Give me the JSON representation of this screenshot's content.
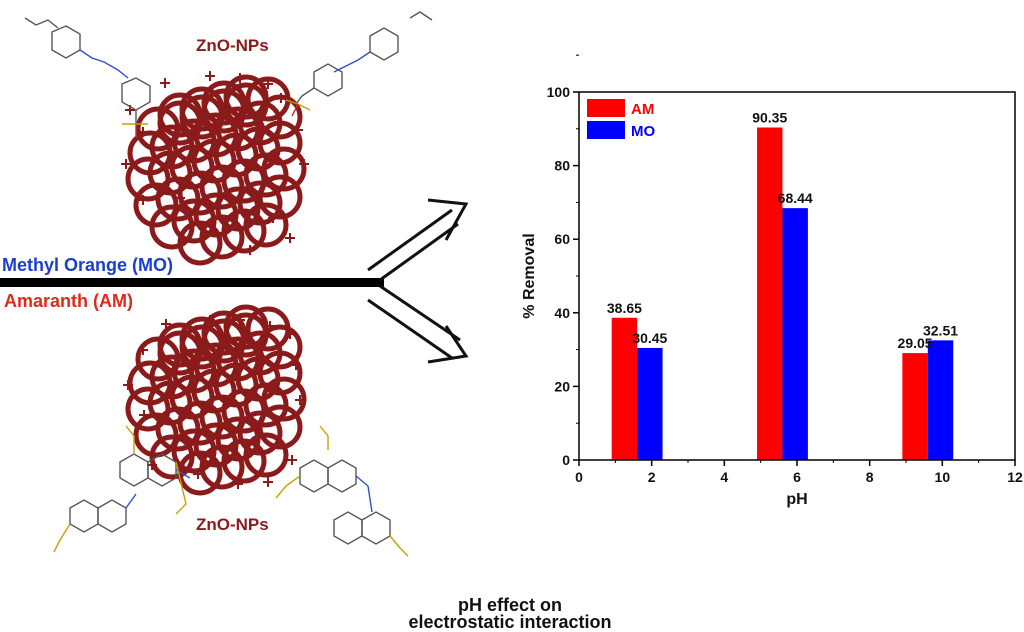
{
  "labels": {
    "np_top": "ZnO-NPs",
    "np_bottom": "ZnO-NPs",
    "dye_mo": "Methyl Orange (MO)",
    "dye_am": "Amaranth (AM)",
    "caption_line1": "pH effect on",
    "caption_line2": "electrostatic interaction"
  },
  "colors": {
    "am": "#ff0000",
    "mo": "#0000ff",
    "nanoparticle": "#8b1a1a",
    "mo_text": "#1a3fd0",
    "am_text": "#e02a1a"
  },
  "chart_data": {
    "type": "bar",
    "xlabel": "pH",
    "ylabel": "% Removal",
    "xlim": [
      0,
      12
    ],
    "ylim": [
      0,
      100
    ],
    "xticks": [
      0,
      2,
      4,
      6,
      8,
      10,
      12
    ],
    "yticks": [
      0,
      20,
      40,
      60,
      80,
      100
    ],
    "legend_position": "top-left",
    "categories": [
      1.6,
      5.6,
      9.6
    ],
    "series": [
      {
        "name": "AM",
        "color": "#ff0000",
        "values": [
          38.65,
          90.35,
          29.05
        ],
        "value_labels": [
          "38.65",
          "90.35",
          "29.05"
        ]
      },
      {
        "name": "MO",
        "color": "#0000ff",
        "values": [
          30.45,
          68.44,
          32.51
        ],
        "value_labels": [
          "30.45",
          "68.44",
          "32.51"
        ]
      }
    ]
  }
}
